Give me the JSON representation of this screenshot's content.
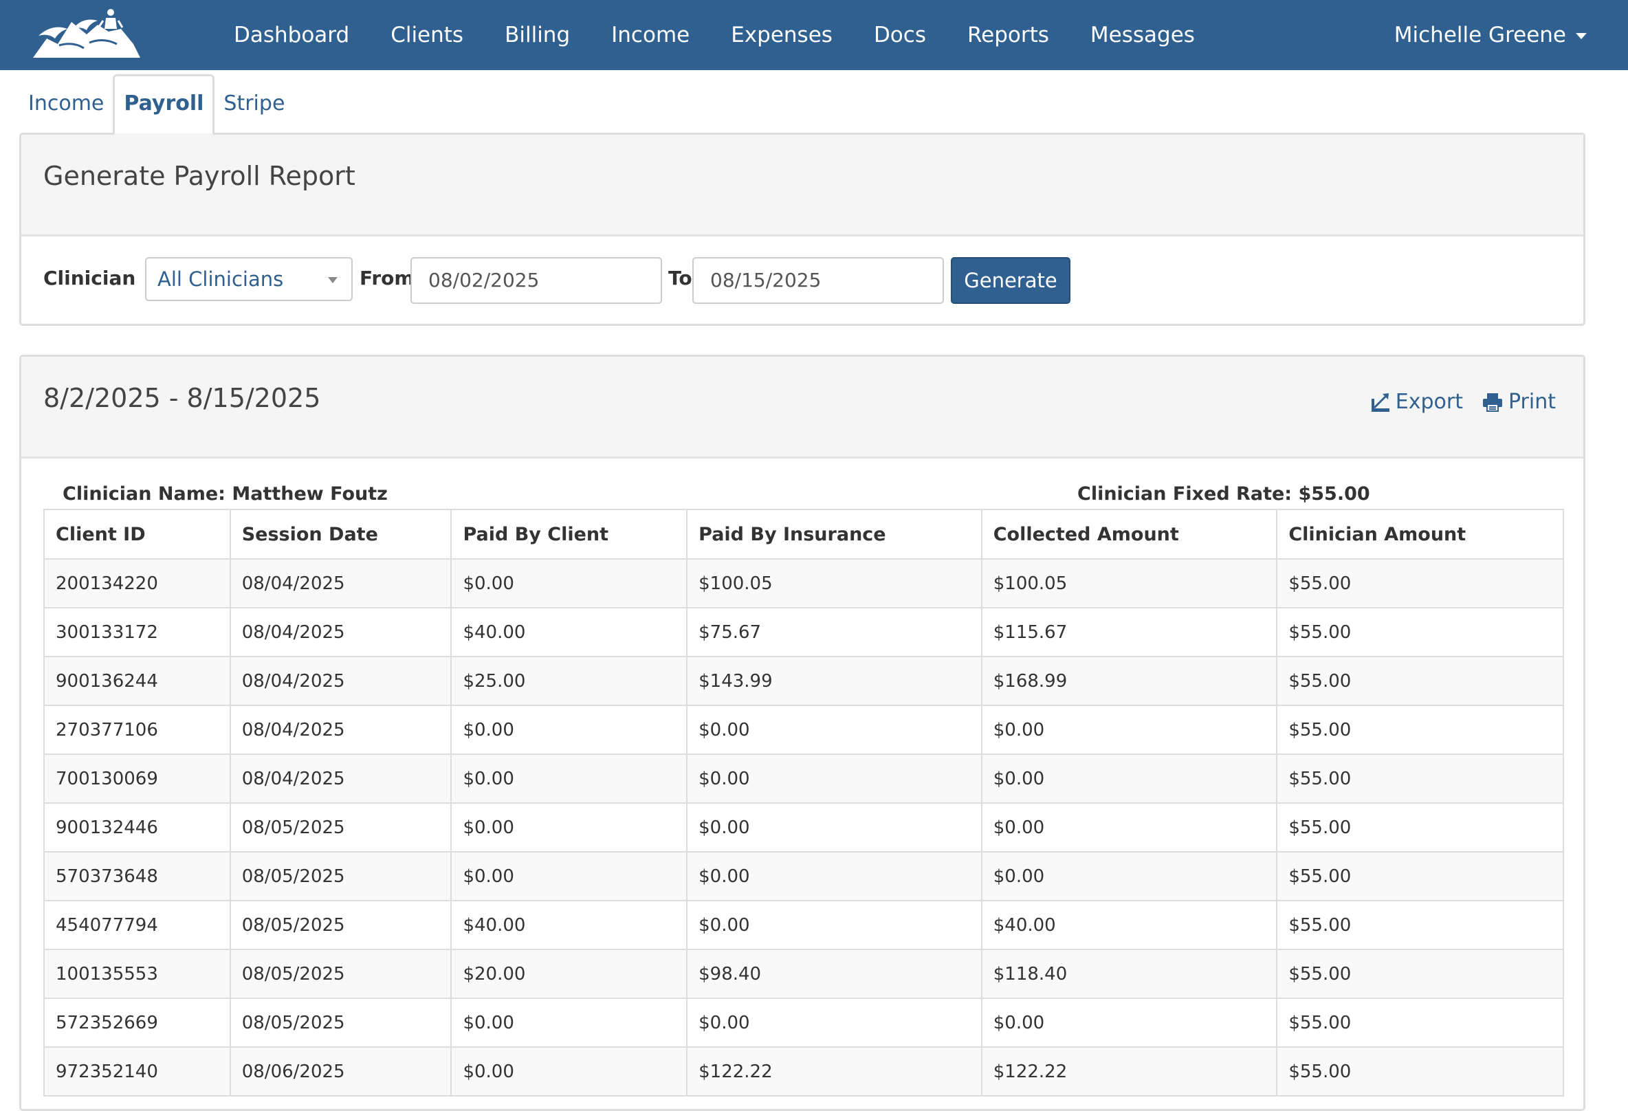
{
  "navbar": {
    "links": [
      "Dashboard",
      "Clients",
      "Billing",
      "Income",
      "Expenses",
      "Docs",
      "Reports",
      "Messages"
    ],
    "user": "Michelle Greene",
    "background": "#2f6090"
  },
  "tabs": [
    "Income",
    "Payroll",
    "Stripe"
  ],
  "generate_panel": {
    "title": "Generate Payroll Report",
    "clinician_label": "Clinician",
    "clinician_value": "All Clinicians",
    "from_label": "From",
    "from_value": "08/02/2025",
    "to_label": "To",
    "to_value": "08/15/2025",
    "generate_label": "Generate"
  },
  "report_panel": {
    "title": "8/2/2025 - 8/15/2025",
    "export_label": "Export",
    "print_label": "Print",
    "clinician_name": "Clinician Name: Matthew Foutz",
    "fixed_rate": "Clinician Fixed Rate: $55.00",
    "columns": [
      "Client ID",
      "Session Date",
      "Paid By Client",
      "Paid By Insurance",
      "Collected Amount",
      "Clinician Amount"
    ],
    "rows": [
      [
        "200134220",
        "08/04/2025",
        "$0.00",
        "$100.05",
        "$100.05",
        "$55.00"
      ],
      [
        "300133172",
        "08/04/2025",
        "$40.00",
        "$75.67",
        "$115.67",
        "$55.00"
      ],
      [
        "900136244",
        "08/04/2025",
        "$25.00",
        "$143.99",
        "$168.99",
        "$55.00"
      ],
      [
        "270377106",
        "08/04/2025",
        "$0.00",
        "$0.00",
        "$0.00",
        "$55.00"
      ],
      [
        "700130069",
        "08/04/2025",
        "$0.00",
        "$0.00",
        "$0.00",
        "$55.00"
      ],
      [
        "900132446",
        "08/05/2025",
        "$0.00",
        "$0.00",
        "$0.00",
        "$55.00"
      ],
      [
        "570373648",
        "08/05/2025",
        "$0.00",
        "$0.00",
        "$0.00",
        "$55.00"
      ],
      [
        "454077794",
        "08/05/2025",
        "$40.00",
        "$0.00",
        "$40.00",
        "$55.00"
      ],
      [
        "100135553",
        "08/05/2025",
        "$20.00",
        "$98.40",
        "$118.40",
        "$55.00"
      ],
      [
        "572352669",
        "08/05/2025",
        "$0.00",
        "$0.00",
        "$0.00",
        "$55.00"
      ],
      [
        "972352140",
        "08/06/2025",
        "$0.00",
        "$122.22",
        "$122.22",
        "$55.00"
      ]
    ]
  }
}
